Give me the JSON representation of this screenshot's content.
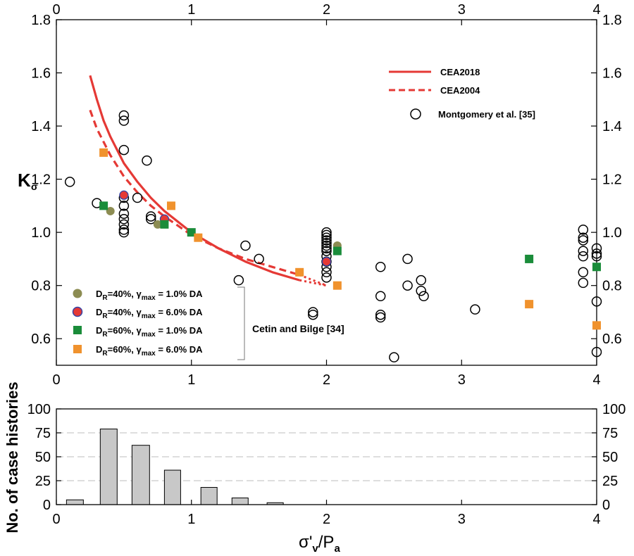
{
  "chart_data": [
    {
      "type": "scatter",
      "ylabel": "K",
      "ylabel_sub": "σ",
      "x_ticks": [
        "0",
        "1",
        "2",
        "3",
        "4"
      ],
      "y_ticks": [
        "0.6",
        "0.8",
        "1.0",
        "1.2",
        "1.4",
        "1.6",
        "1.8"
      ],
      "xlim": [
        0,
        4
      ],
      "ylim": [
        0.5,
        1.8
      ],
      "grid": false,
      "legend_position": "top-right (lines, Montgomery) and bottom-left (Cetin and Bilge)",
      "curves": [
        {
          "name": "CEA2018",
          "color": "#e53935",
          "style": "solid",
          "x": [
            0.25,
            0.3,
            0.35,
            0.4,
            0.5,
            0.6,
            0.7,
            0.8,
            1.0,
            1.2,
            1.4,
            1.6,
            1.8
          ],
          "y": [
            1.59,
            1.5,
            1.42,
            1.36,
            1.26,
            1.19,
            1.13,
            1.08,
            1.0,
            0.94,
            0.89,
            0.85,
            0.82
          ],
          "extension": {
            "style": "dotted",
            "x": [
              1.8,
              2.0
            ],
            "y": [
              0.82,
              0.8
            ]
          }
        },
        {
          "name": "CEA2004",
          "color": "#e53935",
          "style": "dashed",
          "x": [
            0.25,
            0.3,
            0.35,
            0.4,
            0.5,
            0.6,
            0.7,
            0.8,
            1.0,
            1.2,
            1.4,
            1.6,
            1.8
          ],
          "y": [
            1.46,
            1.39,
            1.34,
            1.29,
            1.21,
            1.15,
            1.1,
            1.06,
            0.99,
            0.94,
            0.9,
            0.87,
            0.84
          ],
          "extension": {
            "style": "dotted",
            "x": [
              1.8,
              2.0
            ],
            "y": [
              0.84,
              0.8
            ]
          }
        }
      ],
      "series": [
        {
          "name": "Montgomery et al. [35]",
          "marker": "open-circle",
          "points": [
            [
              0.1,
              1.19
            ],
            [
              0.3,
              1.11
            ],
            [
              0.5,
              1.44
            ],
            [
              0.5,
              1.42
            ],
            [
              0.5,
              1.31
            ],
            [
              0.5,
              1.13
            ],
            [
              0.5,
              1.1
            ],
            [
              0.5,
              1.07
            ],
            [
              0.5,
              1.05
            ],
            [
              0.5,
              1.03
            ],
            [
              0.5,
              1.01
            ],
            [
              0.5,
              1.0
            ],
            [
              0.6,
              1.13
            ],
            [
              0.67,
              1.27
            ],
            [
              0.7,
              1.06
            ],
            [
              0.7,
              1.05
            ],
            [
              1.35,
              0.82
            ],
            [
              1.4,
              0.95
            ],
            [
              1.5,
              0.9
            ],
            [
              1.9,
              0.7
            ],
            [
              1.9,
              0.69
            ],
            [
              2.0,
              1.0
            ],
            [
              2.0,
              0.99
            ],
            [
              2.0,
              0.98
            ],
            [
              2.0,
              0.97
            ],
            [
              2.0,
              0.96
            ],
            [
              2.0,
              0.95
            ],
            [
              2.0,
              0.94
            ],
            [
              2.0,
              0.93
            ],
            [
              2.0,
              0.91
            ],
            [
              2.0,
              0.89
            ],
            [
              2.0,
              0.87
            ],
            [
              2.0,
              0.85
            ],
            [
              2.0,
              0.83
            ],
            [
              2.4,
              0.87
            ],
            [
              2.4,
              0.76
            ],
            [
              2.4,
              0.69
            ],
            [
              2.4,
              0.68
            ],
            [
              2.5,
              0.53
            ],
            [
              2.6,
              0.9
            ],
            [
              2.6,
              0.8
            ],
            [
              2.7,
              0.82
            ],
            [
              2.7,
              0.78
            ],
            [
              2.72,
              0.76
            ],
            [
              3.1,
              0.71
            ],
            [
              3.9,
              1.01
            ],
            [
              3.9,
              0.98
            ],
            [
              3.9,
              0.97
            ],
            [
              3.9,
              0.93
            ],
            [
              3.9,
              0.91
            ],
            [
              3.9,
              0.85
            ],
            [
              3.9,
              0.81
            ],
            [
              4.0,
              0.94
            ],
            [
              4.0,
              0.92
            ],
            [
              4.0,
              0.91
            ],
            [
              4.0,
              0.74
            ],
            [
              4.0,
              0.55
            ]
          ]
        },
        {
          "name": "D_R=40%, γ_max = 1.0% DA",
          "label_parts": [
            "D",
            "R",
            "=40%, γ",
            "max",
            " = 1.0% DA"
          ],
          "marker": "filled-circle",
          "color": "#8c8c52",
          "points": [
            [
              0.4,
              1.08
            ],
            [
              0.75,
              1.03
            ],
            [
              2.08,
              0.95
            ]
          ]
        },
        {
          "name": "D_R=40%, γ_max = 6.0% DA",
          "label_parts": [
            "D",
            "R",
            "=40%, γ",
            "max",
            " = 6.0% DA"
          ],
          "marker": "filled-circle",
          "color": "#e53935",
          "edge": "#3545a8",
          "points": [
            [
              0.5,
              1.14
            ],
            [
              0.8,
              1.05
            ],
            [
              2.0,
              0.89
            ]
          ]
        },
        {
          "name": "D_R=60%, γ_max = 1.0% DA",
          "label_parts": [
            "D",
            "R",
            "=60%, γ",
            "max",
            " = 1.0% DA"
          ],
          "marker": "filled-square",
          "color": "#1a8c3a",
          "points": [
            [
              0.35,
              1.1
            ],
            [
              0.8,
              1.03
            ],
            [
              1.0,
              1.0
            ],
            [
              2.08,
              0.93
            ],
            [
              3.5,
              0.9
            ],
            [
              4.0,
              0.87
            ]
          ]
        },
        {
          "name": "D_R=60%, γ_max = 6.0% DA",
          "label_parts": [
            "D",
            "R",
            "=60%, γ",
            "max",
            " = 6.0% DA"
          ],
          "marker": "filled-square",
          "color": "#f0922d",
          "points": [
            [
              0.35,
              1.3
            ],
            [
              0.85,
              1.1
            ],
            [
              1.05,
              0.98
            ],
            [
              1.8,
              0.85
            ],
            [
              2.08,
              0.8
            ],
            [
              3.5,
              0.73
            ],
            [
              4.0,
              0.65
            ]
          ]
        }
      ],
      "group_label": "Cetin and Bilge [34]"
    },
    {
      "type": "bar",
      "ylabel": "No. of case histories",
      "xlabel_parts": [
        "σ'",
        "v",
        "/P",
        "a"
      ],
      "x_ticks": [
        "0",
        "1",
        "2",
        "3",
        "4"
      ],
      "y_ticks": [
        "0",
        "25",
        "50",
        "75",
        "100"
      ],
      "xlim": [
        0,
        4
      ],
      "ylim": [
        0,
        100
      ],
      "grid": true,
      "bar_color": "#c8c8c8",
      "bins": [
        {
          "x0": 0.075,
          "x1": 0.2,
          "value": 5
        },
        {
          "x0": 0.325,
          "x1": 0.45,
          "value": 79
        },
        {
          "x0": 0.56,
          "x1": 0.69,
          "value": 62
        },
        {
          "x0": 0.8,
          "x1": 0.92,
          "value": 36
        },
        {
          "x0": 1.07,
          "x1": 1.19,
          "value": 18
        },
        {
          "x0": 1.3,
          "x1": 1.42,
          "value": 7
        },
        {
          "x0": 1.56,
          "x1": 1.68,
          "value": 2
        }
      ]
    }
  ]
}
